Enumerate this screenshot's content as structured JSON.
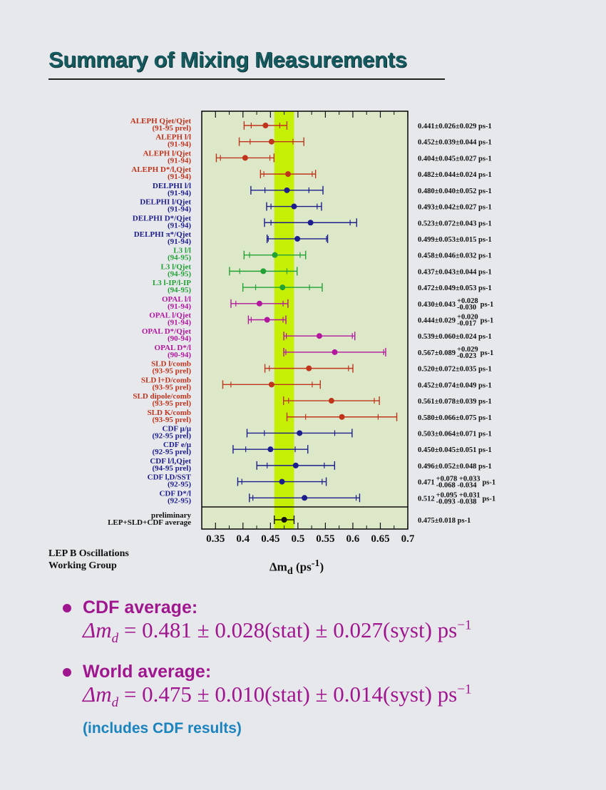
{
  "title": "Summary of Mixing Measurements",
  "group": [
    "LEP B Oscillations",
    "Working Group"
  ],
  "x_axis_label": "Δm",
  "x_axis_sub": "d",
  "x_axis_unit": " (ps",
  "x_axis_unit_exp": "-1",
  "x_axis_close": ")",
  "colors": {
    "ALEPH": "#c0341c",
    "DELPHI": "#1d1e8e",
    "L3": "#22a234",
    "OPAL": "#b2179e",
    "SLD": "#c0341c",
    "CDF": "#1d1e8e",
    "average": "#111111",
    "band": "#c6ef06",
    "plot_bg": "#dde8c8",
    "accent": "#a0168f",
    "note": "#1b83bd"
  },
  "chart_data": {
    "type": "scatter",
    "orientation": "horizontal error bars",
    "xlim": [
      0.325,
      0.7
    ],
    "xticks": [
      "0.35",
      "0.4",
      "0.45",
      "0.5",
      "0.55",
      "0.6",
      "0.65",
      "0.7"
    ],
    "xlabel": "Δmd (ps-1)",
    "band": {
      "center": 0.475,
      "halfwidth": 0.018
    },
    "measurements": [
      {
        "label": [
          "ALEPH Qjet/Qjet",
          "(91-95 prel)"
        ],
        "exp": "ALEPH",
        "value": 0.441,
        "stat": 0.026,
        "syst": 0.029,
        "display": "0.441±0.026±0.029 ps-1"
      },
      {
        "label": [
          "ALEPH l/l",
          "(91-94)"
        ],
        "exp": "ALEPH",
        "value": 0.452,
        "stat": 0.039,
        "syst": 0.044,
        "display": "0.452±0.039±0.044 ps-1"
      },
      {
        "label": [
          "ALEPH l/Qjet",
          "(91-94)"
        ],
        "exp": "ALEPH",
        "value": 0.404,
        "stat": 0.045,
        "syst": 0.027,
        "display": "0.404±0.045±0.027 ps-1"
      },
      {
        "label": [
          "ALEPH D*/l,Qjet",
          "(91-94)"
        ],
        "exp": "ALEPH",
        "value": 0.482,
        "stat": 0.044,
        "syst": 0.024,
        "display": "0.482±0.044±0.024 ps-1"
      },
      {
        "label": [
          "DELPHI l/l",
          "(91-94)"
        ],
        "exp": "DELPHI",
        "value": 0.48,
        "stat": 0.04,
        "syst": 0.052,
        "display": "0.480±0.040±0.052 ps-1"
      },
      {
        "label": [
          "DELPHI l/Qjet",
          "(91-94)"
        ],
        "exp": "DELPHI",
        "value": 0.493,
        "stat": 0.042,
        "syst": 0.027,
        "display": "0.493±0.042±0.027 ps-1"
      },
      {
        "label": [
          "DELPHI D*/Qjet",
          "(91-94)"
        ],
        "exp": "DELPHI",
        "value": 0.523,
        "stat": 0.072,
        "syst": 0.043,
        "display": "0.523±0.072±0.043 ps-1"
      },
      {
        "label": [
          "DELPHI π*/Qjet",
          "(91-94)"
        ],
        "exp": "DELPHI",
        "value": 0.499,
        "stat": 0.053,
        "syst": 0.015,
        "display": "0.499±0.053±0.015 ps-1"
      },
      {
        "label": [
          "L3 l/l",
          "(94-95)"
        ],
        "exp": "L3",
        "value": 0.458,
        "stat": 0.046,
        "syst": 0.032,
        "display": "0.458±0.046±0.032 ps-1"
      },
      {
        "label": [
          "L3 l/Qjet",
          "(94-95)"
        ],
        "exp": "L3",
        "value": 0.437,
        "stat": 0.043,
        "syst": 0.044,
        "display": "0.437±0.043±0.044 ps-1"
      },
      {
        "label": [
          "L3 l-IP/l-IP",
          "(94-95)"
        ],
        "exp": "L3",
        "value": 0.472,
        "stat": 0.049,
        "syst": 0.053,
        "display": "0.472±0.049±0.053 ps-1"
      },
      {
        "label": [
          "OPAL l/l",
          "(91-94)"
        ],
        "exp": "OPAL",
        "value": 0.43,
        "stat": 0.043,
        "syst": 0.029,
        "display": "0.430±0.043",
        "sup": "+0.028",
        "sub": "-0.030",
        "unit": "ps-1"
      },
      {
        "label": [
          "OPAL l/Qjet",
          "(91-94)"
        ],
        "exp": "OPAL",
        "value": 0.444,
        "stat": 0.029,
        "syst": 0.018,
        "display": "0.444±0.029",
        "sup": "+0.020",
        "sub": "-0.017",
        "unit": "ps-1"
      },
      {
        "label": [
          "OPAL D*/Qjet",
          "(90-94)"
        ],
        "exp": "OPAL",
        "value": 0.539,
        "stat": 0.06,
        "syst": 0.024,
        "display": "0.539±0.060±0.024 ps-1"
      },
      {
        "label": [
          "OPAL D*/l",
          "(90-94)"
        ],
        "exp": "OPAL",
        "value": 0.567,
        "stat": 0.089,
        "syst": 0.026,
        "display": "0.567±0.089",
        "sup": "+0.029",
        "sub": "-0.023",
        "unit": "ps-1"
      },
      {
        "label": [
          "SLD l/comb",
          "(93-95 prel)"
        ],
        "exp": "SLD",
        "value": 0.52,
        "stat": 0.072,
        "syst": 0.035,
        "display": "0.520±0.072±0.035 ps-1"
      },
      {
        "label": [
          "SLD l+D/comb",
          "(93-95 prel)"
        ],
        "exp": "SLD",
        "value": 0.452,
        "stat": 0.074,
        "syst": 0.049,
        "display": "0.452±0.074±0.049 ps-1"
      },
      {
        "label": [
          "SLD dipole/comb",
          "(93-95 prel)"
        ],
        "exp": "SLD",
        "value": 0.561,
        "stat": 0.078,
        "syst": 0.039,
        "display": "0.561±0.078±0.039 ps-1"
      },
      {
        "label": [
          "SLD K/comb",
          "(93-95 prel)"
        ],
        "exp": "SLD",
        "value": 0.58,
        "stat": 0.066,
        "syst": 0.075,
        "display": "0.580±0.066±0.075 ps-1"
      },
      {
        "label": [
          "CDF μ/μ",
          "(92-95 prel)"
        ],
        "exp": "CDF",
        "value": 0.503,
        "stat": 0.064,
        "syst": 0.071,
        "display": "0.503±0.064±0.071 ps-1"
      },
      {
        "label": [
          "CDF e/μ",
          "(92-95 prel)"
        ],
        "exp": "CDF",
        "value": 0.45,
        "stat": 0.045,
        "syst": 0.051,
        "display": "0.450±0.045±0.051 ps-1"
      },
      {
        "label": [
          "CDF l/l,Qjet",
          "(94-95 prel)"
        ],
        "exp": "CDF",
        "value": 0.496,
        "stat": 0.052,
        "syst": 0.048,
        "display": "0.496±0.052±0.048 ps-1"
      },
      {
        "label": [
          "CDF l,D/SST",
          "(92-95)"
        ],
        "exp": "CDF",
        "value": 0.471,
        "stat": 0.073,
        "syst": 0.034,
        "display": "0.471",
        "sup": "+0.078  +0.033",
        "sub": "-0.068  -0.034",
        "unit": "ps-1"
      },
      {
        "label": [
          "CDF D*/l",
          "(92-95)"
        ],
        "exp": "CDF",
        "value": 0.512,
        "stat": 0.094,
        "syst": 0.035,
        "display": "0.512",
        "sup": "+0.095  +0.031",
        "sub": "-0.093  -0.038",
        "unit": "ps-1"
      }
    ],
    "average": {
      "label": [
        "preliminary",
        "LEP+SLD+CDF average"
      ],
      "exp": "average",
      "value": 0.475,
      "stat": 0.018,
      "syst": 0.0,
      "display": "0.475±0.018 ps-1"
    }
  },
  "bullets": [
    {
      "head": "CDF average:",
      "lhs": "Δm",
      "sub": "d",
      "rhs": " = 0.481 ± 0.028(stat) ± 0.027(syst) ps",
      "exp": "−1"
    },
    {
      "head": "World average:",
      "lhs": "Δm",
      "sub": "d",
      "rhs": " = 0.475 ± 0.010(stat) ± 0.014(syst) ps",
      "exp": "−1"
    }
  ],
  "note": "(includes CDF results)"
}
